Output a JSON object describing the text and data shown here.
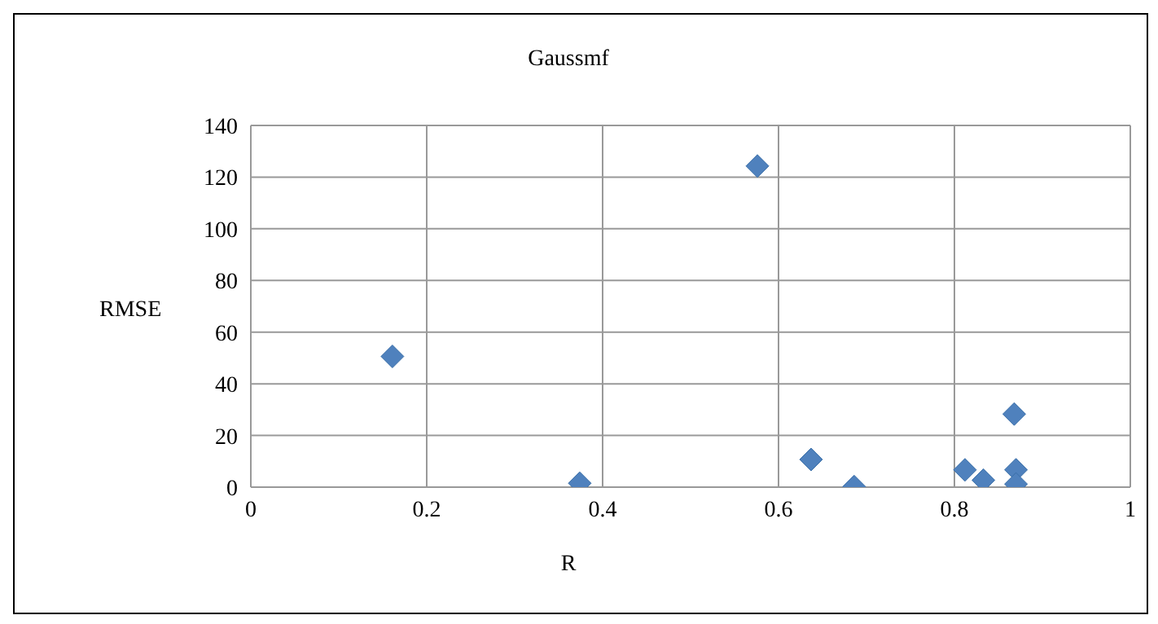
{
  "chart_data": {
    "type": "scatter",
    "title": "Gaussmf",
    "xlabel": "R",
    "ylabel": "RMSE",
    "x": [
      0.161,
      0.374,
      0.576,
      0.637,
      0.686,
      0.812,
      0.833,
      0.868,
      0.87,
      0.87
    ],
    "values": [
      50.6,
      1.5,
      124.3,
      10.7,
      0.2,
      6.7,
      2.7,
      28.3,
      6.7,
      1.2
    ],
    "color": "#4f81bd",
    "marker": "diamond",
    "xlim": [
      0,
      1
    ],
    "xticks": [
      0,
      0.2,
      0.4,
      0.6,
      0.8,
      1
    ],
    "ylim": [
      0,
      140
    ],
    "yticks": [
      0,
      20,
      40,
      60,
      80,
      100,
      120,
      140
    ],
    "grid": true
  }
}
